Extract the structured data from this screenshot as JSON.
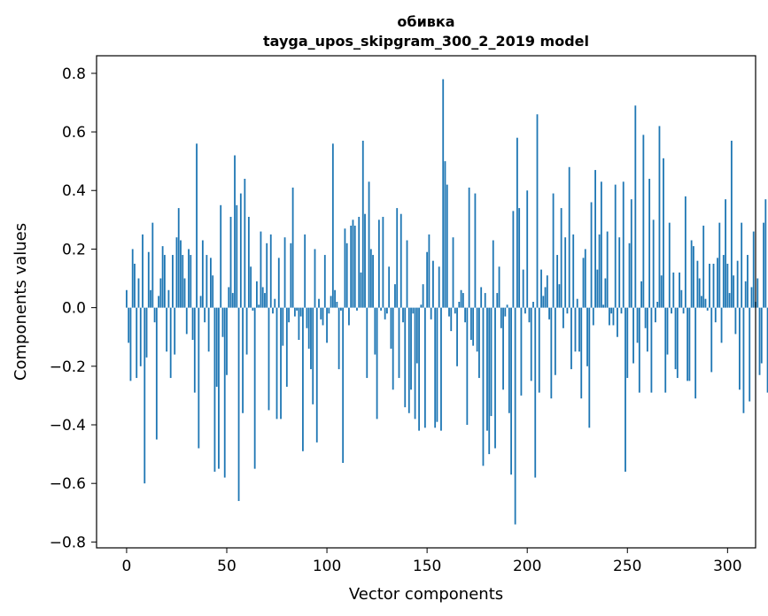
{
  "chart_data": {
    "type": "bar",
    "title": "обивка",
    "subtitle": "tayga_upos_skipgram_300_2_2019 model",
    "xlabel": "Vector components",
    "ylabel": "Components values",
    "xlim": [
      -15,
      314
    ],
    "ylim": [
      -0.82,
      0.86
    ],
    "xticks": [
      0,
      50,
      100,
      150,
      200,
      250,
      300
    ],
    "xtick_labels": [
      "0",
      "50",
      "100",
      "150",
      "200",
      "250",
      "300"
    ],
    "yticks": [
      -0.8,
      -0.6,
      -0.4,
      -0.2,
      0.0,
      0.2,
      0.4,
      0.6,
      0.8
    ],
    "ytick_labels": [
      "−0.8",
      "−0.6",
      "−0.4",
      "−0.2",
      "0.0",
      "0.2",
      "0.4",
      "0.6",
      "0.8"
    ],
    "bar_color": "#1f77b4",
    "grid": false,
    "values": [
      0.06,
      -0.12,
      -0.25,
      0.2,
      0.15,
      -0.24,
      0.1,
      -0.2,
      0.25,
      -0.6,
      -0.17,
      0.19,
      0.06,
      0.29,
      -0.05,
      -0.45,
      0.04,
      0.1,
      0.21,
      0.18,
      -0.15,
      0.06,
      -0.24,
      0.18,
      -0.16,
      0.24,
      0.34,
      0.23,
      0.18,
      0.1,
      -0.09,
      0.2,
      0.18,
      -0.11,
      -0.29,
      0.56,
      -0.48,
      0.04,
      0.23,
      -0.05,
      0.18,
      -0.15,
      0.17,
      0.11,
      -0.56,
      -0.27,
      -0.55,
      0.35,
      -0.1,
      -0.58,
      -0.23,
      0.07,
      0.31,
      0.05,
      0.52,
      0.35,
      -0.66,
      0.39,
      -0.36,
      0.44,
      -0.16,
      0.31,
      0.14,
      -0.01,
      -0.55,
      0.09,
      0.01,
      0.26,
      0.07,
      0.05,
      0.22,
      -0.35,
      0.25,
      -0.02,
      0.03,
      -0.38,
      0.17,
      -0.38,
      -0.13,
      0.24,
      -0.27,
      -0.05,
      0.22,
      0.41,
      -0.03,
      -0.01,
      -0.11,
      -0.03,
      -0.49,
      0.25,
      -0.07,
      -0.14,
      -0.21,
      -0.33,
      0.2,
      -0.46,
      0.03,
      -0.04,
      -0.06,
      0.18,
      -0.12,
      -0.02,
      0.04,
      0.56,
      0.06,
      0.02,
      -0.21,
      -0.01,
      -0.53,
      0.27,
      0.22,
      -0.06,
      0.28,
      0.3,
      0.28,
      -0.01,
      0.31,
      0.12,
      0.57,
      0.32,
      -0.24,
      0.43,
      0.2,
      0.18,
      -0.16,
      -0.38,
      0.3,
      -0.01,
      0.31,
      -0.04,
      -0.02,
      0.14,
      -0.14,
      -0.28,
      0.08,
      0.34,
      -0.24,
      0.32,
      -0.05,
      -0.34,
      0.23,
      -0.36,
      -0.28,
      -0.02,
      -0.38,
      -0.19,
      -0.42,
      0.01,
      0.08,
      -0.41,
      0.19,
      0.25,
      -0.04,
      0.16,
      -0.41,
      -0.39,
      0.14,
      -0.42,
      0.78,
      0.5,
      0.42,
      -0.03,
      -0.08,
      0.24,
      -0.02,
      -0.2,
      0.02,
      0.06,
      0.05,
      -0.05,
      -0.4,
      0.41,
      -0.11,
      -0.13,
      0.39,
      -0.15,
      -0.24,
      0.07,
      -0.54,
      0.05,
      -0.42,
      -0.5,
      -0.37,
      0.23,
      -0.48,
      0.05,
      0.14,
      -0.07,
      -0.28,
      -0.03,
      0.01,
      -0.36,
      -0.57,
      0.33,
      -0.74,
      0.58,
      0.34,
      -0.3,
      0.13,
      -0.02,
      0.4,
      -0.05,
      -0.25,
      0.02,
      -0.58,
      0.66,
      -0.29,
      0.13,
      0.04,
      0.07,
      0.11,
      -0.04,
      -0.31,
      0.39,
      -0.23,
      0.18,
      0.08,
      0.34,
      -0.07,
      0.24,
      -0.02,
      0.48,
      -0.21,
      0.25,
      -0.15,
      0.03,
      -0.15,
      -0.31,
      0.17,
      0.2,
      -0.2,
      -0.41,
      0.36,
      -0.06,
      0.47,
      0.13,
      0.25,
      0.43,
      0.01,
      0.1,
      0.26,
      -0.06,
      -0.02,
      -0.06,
      0.42,
      -0.1,
      0.24,
      -0.02,
      0.43,
      -0.56,
      -0.24,
      0.22,
      0.37,
      -0.19,
      0.69,
      -0.12,
      -0.29,
      0.09,
      0.59,
      -0.07,
      -0.15,
      0.44,
      -0.29,
      0.3,
      -0.05,
      0.02,
      0.62,
      0.11,
      0.51,
      -0.29,
      -0.16,
      0.29,
      -0.02,
      0.12,
      -0.21,
      -0.24,
      0.12,
      0.06,
      -0.02,
      0.38,
      -0.25,
      -0.25,
      0.23,
      0.21,
      -0.31,
      0.16,
      0.1,
      0.04,
      0.28,
      0.03,
      -0.01,
      0.15,
      -0.22,
      0.15,
      -0.05,
      0.17,
      0.29,
      -0.12,
      0.18,
      0.37,
      0.15,
      0.05,
      0.57,
      0.11,
      -0.09,
      0.16,
      -0.28,
      0.29,
      -0.36,
      0.09,
      0.18,
      -0.32,
      0.07,
      0.26,
      0.02,
      0.1,
      -0.23,
      -0.19,
      0.29,
      0.37,
      -0.29
    ]
  }
}
